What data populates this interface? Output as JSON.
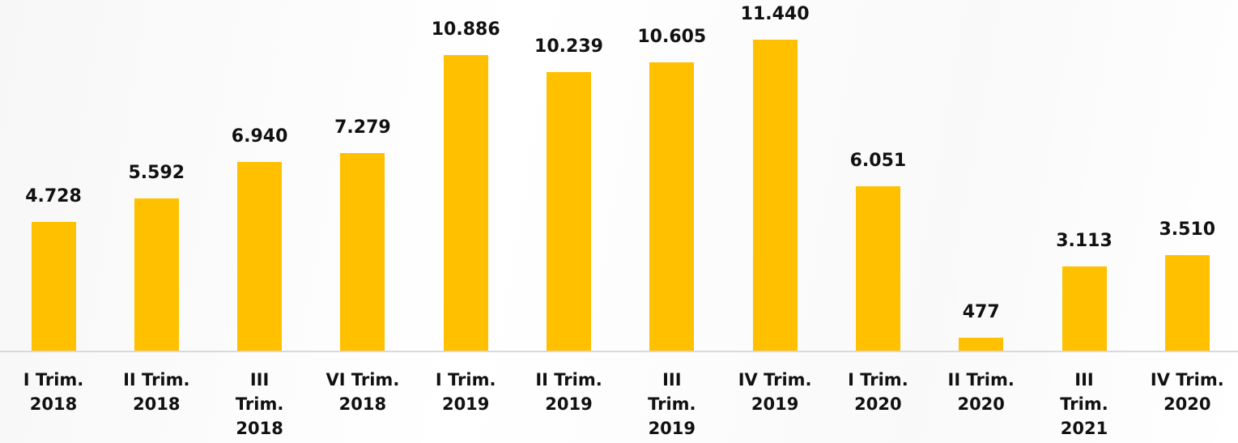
{
  "chart_data": {
    "type": "bar",
    "categories": [
      "I Trim.\n2018",
      "II Trim.\n2018",
      "III\nTrim.\n2018",
      "VI Trim.\n2018",
      "I Trim.\n2019",
      "II Trim.\n2019",
      "III\nTrim.\n2019",
      "IV Trim.\n2019",
      "I Trim.\n2020",
      "II Trim.\n2020",
      "III\nTrim.\n2021",
      "IV Trim.\n2020"
    ],
    "values": [
      4728,
      5592,
      6940,
      7279,
      10886,
      10239,
      10605,
      11440,
      6051,
      477,
      3113,
      3510
    ],
    "value_labels": [
      "4.728",
      "5.592",
      "6.940",
      "7.279",
      "10.886",
      "10.239",
      "10.605",
      "11.440",
      "6.051",
      "477",
      "3.113",
      "3.510"
    ],
    "color": "#ffc000"
  }
}
